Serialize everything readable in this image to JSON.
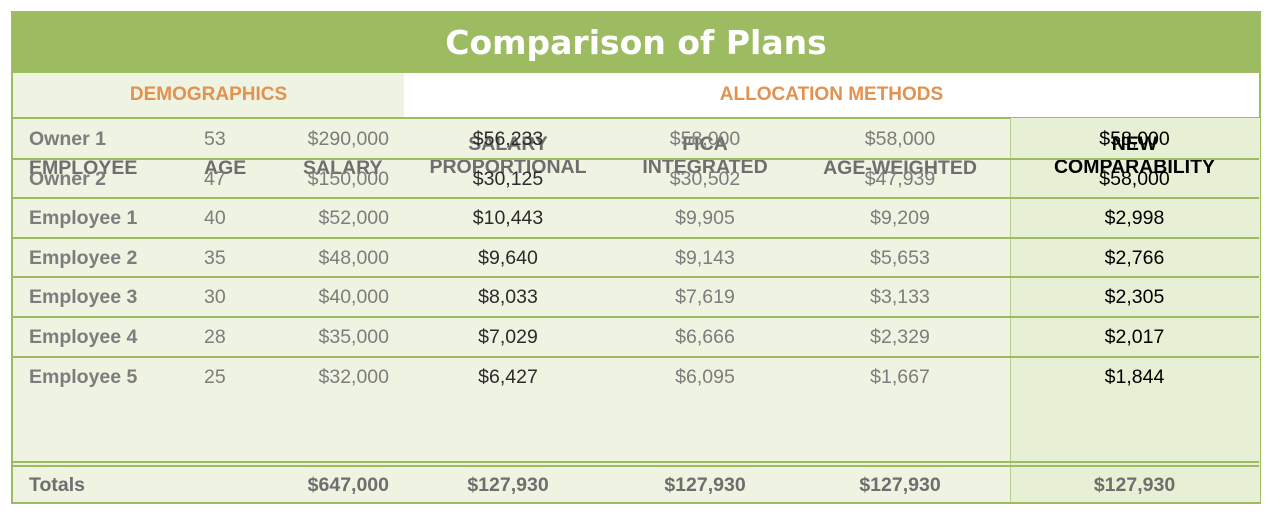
{
  "title": "Comparison of Plans",
  "sections": {
    "demographics": "DEMOGRAPHICS",
    "allocation": "ALLOCATION METHODS"
  },
  "headers": {
    "employee": "EMPLOYEE",
    "age": "AGE",
    "salary": "SALARY",
    "salary_proportional": [
      "SALARY",
      "PROPORTIONAL"
    ],
    "fica_integrated": [
      "FICA",
      "INTEGRATED"
    ],
    "age_weighted": "AGE-WEIGHTED",
    "new_comparability": [
      "NEW",
      "COMPARABILITY"
    ]
  },
  "rows": [
    {
      "employee": "Owner 1",
      "age": "53",
      "salary": "$290,000",
      "salary_proportional": "$56,233",
      "fica_integrated": "$58,000",
      "age_weighted": "$58,000",
      "new_comparability": "$58,000"
    },
    {
      "employee": "Owner 2",
      "age": "47",
      "salary": "$150,000",
      "salary_proportional": "$30,125",
      "fica_integrated": "$30,502",
      "age_weighted": "$47,939",
      "new_comparability": "$58,000"
    },
    {
      "employee": "Employee 1",
      "age": "40",
      "salary": "$52,000",
      "salary_proportional": "$10,443",
      "fica_integrated": "$9,905",
      "age_weighted": "$9,209",
      "new_comparability": "$2,998"
    },
    {
      "employee": "Employee 2",
      "age": "35",
      "salary": "$48,000",
      "salary_proportional": "$9,640",
      "fica_integrated": "$9,143",
      "age_weighted": "$5,653",
      "new_comparability": "$2,766"
    },
    {
      "employee": "Employee 3",
      "age": "30",
      "salary": "$40,000",
      "salary_proportional": "$8,033",
      "fica_integrated": "$7,619",
      "age_weighted": "$3,133",
      "new_comparability": "$2,305"
    },
    {
      "employee": "Employee 4",
      "age": "28",
      "salary": "$35,000",
      "salary_proportional": "$7,029",
      "fica_integrated": "$6,666",
      "age_weighted": "$2,329",
      "new_comparability": "$2,017"
    },
    {
      "employee": "Employee 5",
      "age": "25",
      "salary": "$32,000",
      "salary_proportional": "$6,427",
      "fica_integrated": "$6,095",
      "age_weighted": "$1,667",
      "new_comparability": "$1,844"
    }
  ],
  "totals": {
    "label": "Totals",
    "salary": "$647,000",
    "salary_proportional": "$127,930",
    "fica_integrated": "$127,930",
    "age_weighted": "$127,930",
    "new_comparability": "$127,930"
  },
  "colors": {
    "accent_green": "#9dbb61",
    "section_orange": "#e2924e",
    "row_tint": "#eef3e2"
  }
}
